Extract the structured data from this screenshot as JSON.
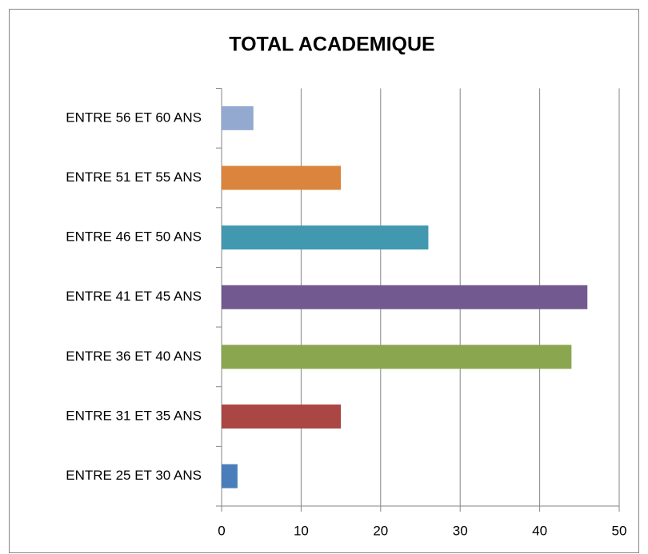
{
  "chart_data": {
    "type": "barh",
    "title": "TOTAL ACADEMIQUE",
    "categories": [
      "ENTRE 25 ET 30 ANS",
      "ENTRE 31 ET 35 ANS",
      "ENTRE 36 ET 40 ANS",
      "ENTRE 41 ET 45 ANS",
      "ENTRE 46 ET 50 ANS",
      "ENTRE 51 ET 55 ANS",
      "ENTRE 56 ET 60 ANS"
    ],
    "values": [
      2,
      15,
      44,
      46,
      26,
      15,
      4
    ],
    "colors": [
      "#4a7ebb",
      "#aa4644",
      "#8aa64f",
      "#725990",
      "#4298af",
      "#db843d",
      "#93a9cf"
    ],
    "xlim": [
      0,
      50
    ],
    "xticks": [
      0,
      10,
      20,
      30,
      40,
      50
    ],
    "grid": true
  }
}
